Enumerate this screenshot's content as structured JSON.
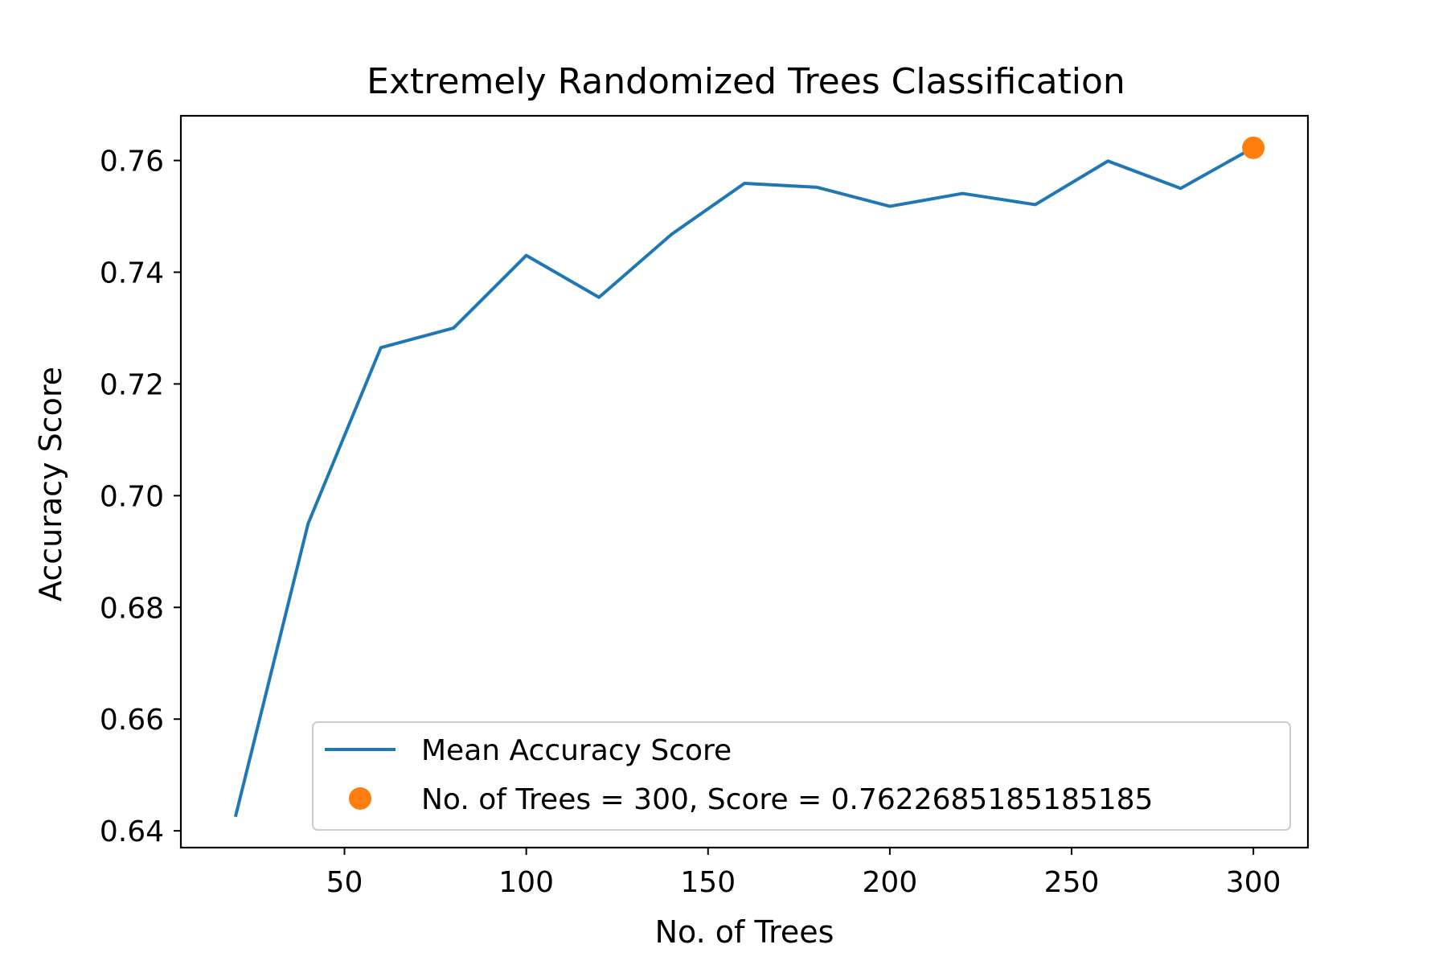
{
  "chart_data": {
    "type": "line",
    "title": "Extremely Randomized Trees Classification",
    "xlabel": "No. of Trees",
    "ylabel": "Accuracy Score",
    "xlim": [
      5,
      315
    ],
    "ylim": [
      0.637,
      0.768
    ],
    "xticks": [
      50,
      100,
      150,
      200,
      250,
      300
    ],
    "yticks": [
      0.64,
      0.66,
      0.68,
      0.7,
      0.72,
      0.74,
      0.76
    ],
    "xtick_labels": [
      "50",
      "100",
      "150",
      "200",
      "250",
      "300"
    ],
    "ytick_labels": [
      "0.64",
      "0.66",
      "0.68",
      "0.70",
      "0.72",
      "0.74",
      "0.76"
    ],
    "grid": false,
    "legend_position": "lower-right",
    "series": [
      {
        "name": "Mean Accuracy Score",
        "kind": "line",
        "color": "#1f77b4",
        "x": [
          20,
          40,
          60,
          80,
          100,
          120,
          140,
          160,
          180,
          200,
          220,
          240,
          260,
          280,
          300
        ],
        "y": [
          0.6425,
          0.695,
          0.7265,
          0.73,
          0.743,
          0.7355,
          0.7468,
          0.7559,
          0.7552,
          0.7518,
          0.7541,
          0.7521,
          0.7599,
          0.755,
          0.7623
        ]
      },
      {
        "name": "No. of Trees = 300, Score = 0.7622685185185185",
        "kind": "marker",
        "color": "#ff7f0e",
        "x": [
          300
        ],
        "y": [
          0.7622685185185185
        ]
      }
    ]
  }
}
